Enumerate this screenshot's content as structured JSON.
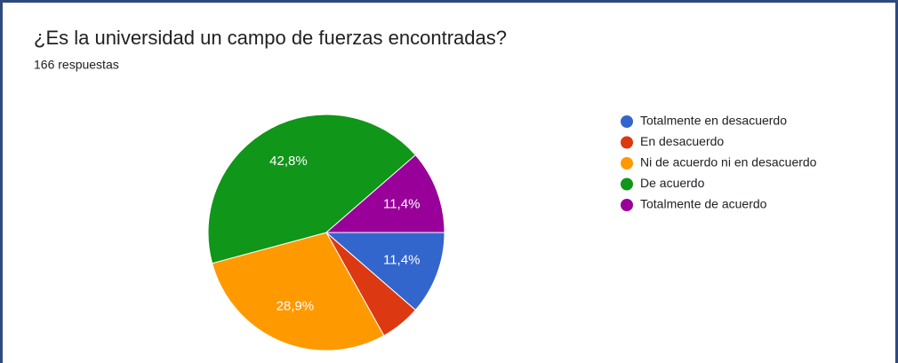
{
  "chart_data": {
    "type": "pie",
    "title": "¿Es la universidad un campo de fuerzas encontradas?",
    "subtitle": "166 respuestas",
    "categories": [
      "Totalmente en desacuerdo",
      "En desacuerdo",
      "Ni de acuerdo ni en desacuerdo",
      "De acuerdo",
      "Totalmente de acuerdo"
    ],
    "values": [
      11.4,
      5.5,
      28.9,
      42.8,
      11.4
    ],
    "value_labels": [
      "11,4%",
      null,
      "28,9%",
      "42,8%",
      "11,4%"
    ],
    "colors": [
      "#3366cc",
      "#dc3912",
      "#ff9900",
      "#109618",
      "#990099"
    ],
    "legend": "right"
  }
}
